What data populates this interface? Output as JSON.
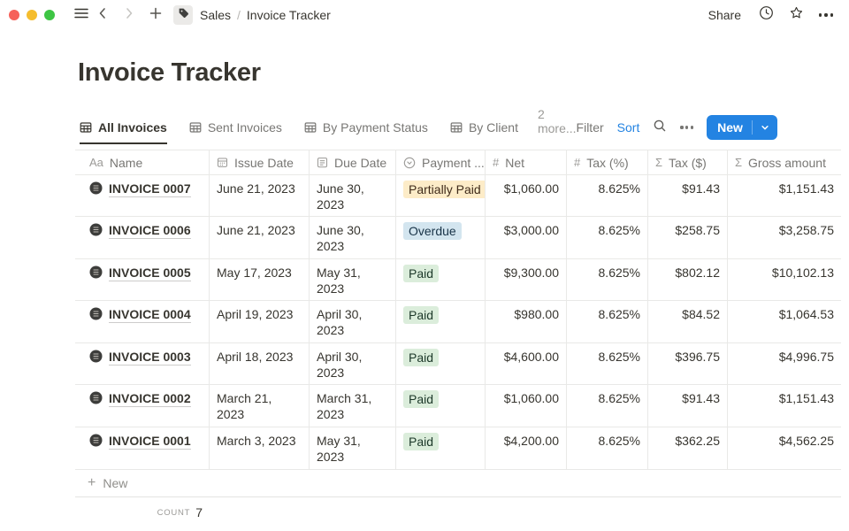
{
  "window": {
    "breadcrumb_section": "Sales",
    "breadcrumb_separator": "/",
    "breadcrumb_page": "Invoice Tracker",
    "share_label": "Share"
  },
  "page": {
    "title": "Invoice Tracker"
  },
  "views": {
    "tabs": [
      {
        "label": "All Invoices",
        "active": true
      },
      {
        "label": "Sent Invoices",
        "active": false
      },
      {
        "label": "By Payment Status",
        "active": false
      },
      {
        "label": "By Client",
        "active": false
      }
    ],
    "more_label": "2 more...",
    "filter_label": "Filter",
    "sort_label": "Sort",
    "new_button_label": "New"
  },
  "icon_glyphs": {
    "text": "Aa",
    "number": "#",
    "formula": "Σ"
  },
  "table": {
    "columns": [
      {
        "label": "Name",
        "icon": "text-icon"
      },
      {
        "label": "Issue Date",
        "icon": "calendar-icon"
      },
      {
        "label": "Due Date",
        "icon": "calendar-icon"
      },
      {
        "label": "Payment ...",
        "icon": "select-icon"
      },
      {
        "label": "Net",
        "icon": "number-icon"
      },
      {
        "label": "Tax (%)",
        "icon": "number-icon"
      },
      {
        "label": "Tax ($)",
        "icon": "formula-icon"
      },
      {
        "label": "Gross amount",
        "icon": "formula-icon"
      }
    ],
    "rows": [
      {
        "name": "INVOICE 0007",
        "issue_date": "June 21, 2023",
        "due_date": "June 30, 2023",
        "status": "Partially Paid",
        "status_color": "yellow",
        "net": "$1,060.00",
        "tax_pct": "8.625%",
        "tax_usd": "$91.43",
        "gross": "$1,151.43"
      },
      {
        "name": "INVOICE 0006",
        "issue_date": "June 21, 2023",
        "due_date": "June 30, 2023",
        "status": "Overdue",
        "status_color": "blue",
        "net": "$3,000.00",
        "tax_pct": "8.625%",
        "tax_usd": "$258.75",
        "gross": "$3,258.75"
      },
      {
        "name": "INVOICE 0005",
        "issue_date": "May 17, 2023",
        "due_date": "May 31, 2023",
        "status": "Paid",
        "status_color": "green",
        "net": "$9,300.00",
        "tax_pct": "8.625%",
        "tax_usd": "$802.12",
        "gross": "$10,102.13"
      },
      {
        "name": "INVOICE 0004",
        "issue_date": "April 19, 2023",
        "due_date": "April 30, 2023",
        "status": "Paid",
        "status_color": "green",
        "net": "$980.00",
        "tax_pct": "8.625%",
        "tax_usd": "$84.52",
        "gross": "$1,064.53"
      },
      {
        "name": "INVOICE 0003",
        "issue_date": "April 18, 2023",
        "due_date": "April 30, 2023",
        "status": "Paid",
        "status_color": "green",
        "net": "$4,600.00",
        "tax_pct": "8.625%",
        "tax_usd": "$396.75",
        "gross": "$4,996.75"
      },
      {
        "name": "INVOICE 0002",
        "issue_date": "March 21, 2023",
        "due_date": "March 31, 2023",
        "status": "Paid",
        "status_color": "green",
        "net": "$1,060.00",
        "tax_pct": "8.625%",
        "tax_usd": "$91.43",
        "gross": "$1,151.43"
      },
      {
        "name": "INVOICE 0001",
        "issue_date": "March 3, 2023",
        "due_date": "May 31, 2023",
        "status": "Paid",
        "status_color": "green",
        "net": "$4,200.00",
        "tax_pct": "8.625%",
        "tax_usd": "$362.25",
        "gross": "$4,562.25"
      }
    ],
    "new_row_label": "New",
    "count_label": "COUNT",
    "count_value": "7"
  },
  "colors": {
    "accent_blue": "#2383e2",
    "badge_yellow_bg": "#fdecc8",
    "badge_yellow_text": "#402c1b",
    "badge_blue_bg": "#d3e5ef",
    "badge_blue_text": "#183347",
    "badge_green_bg": "#dbeddb",
    "badge_green_text": "#1c3829",
    "traffic_red": "#f6615a",
    "traffic_yellow": "#f5bd2e",
    "traffic_green": "#3ec544"
  }
}
